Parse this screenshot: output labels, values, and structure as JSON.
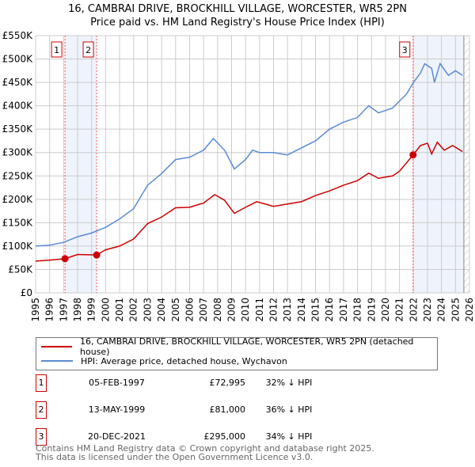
{
  "chart_data": {
    "type": "line",
    "title": "16, CAMBRAI DRIVE, BROCKHILL VILLAGE, WORCESTER, WR5 2PN",
    "subtitle": "Price paid vs. HM Land Registry's House Price Index (HPI)",
    "xlim": [
      1995,
      2026
    ],
    "ylim": [
      0,
      550000
    ],
    "x_ticks": [
      "1995",
      "1996",
      "1997",
      "1998",
      "1999",
      "2000",
      "2001",
      "2002",
      "2003",
      "2004",
      "2005",
      "2006",
      "2007",
      "2008",
      "2009",
      "2010",
      "2011",
      "2012",
      "2013",
      "2014",
      "2015",
      "2016",
      "2017",
      "2018",
      "2019",
      "2020",
      "2021",
      "2022",
      "2023",
      "2024",
      "2025",
      "2026"
    ],
    "y_ticks": [
      {
        "v": 0,
        "l": "£0"
      },
      {
        "v": 50000,
        "l": "£50K"
      },
      {
        "v": 100000,
        "l": "£100K"
      },
      {
        "v": 150000,
        "l": "£150K"
      },
      {
        "v": 200000,
        "l": "£200K"
      },
      {
        "v": 250000,
        "l": "£250K"
      },
      {
        "v": 300000,
        "l": "£300K"
      },
      {
        "v": 350000,
        "l": "£350K"
      },
      {
        "v": 400000,
        "l": "£400K"
      },
      {
        "v": 450000,
        "l": "£450K"
      },
      {
        "v": 500000,
        "l": "£500K"
      },
      {
        "v": 550000,
        "l": "£550K"
      }
    ],
    "series": [
      {
        "name": "16, CAMBRAI DRIVE, BROCKHILL VILLAGE, WORCESTER, WR5 2PN (detached house)",
        "color": "#cc0000",
        "x": [
          1995,
          1996,
          1997.1,
          1998,
          1999.36,
          2000,
          2001,
          2002,
          2003,
          2004,
          2005,
          2006,
          2007,
          2007.8,
          2008.5,
          2009.2,
          2010,
          2010.8,
          2012,
          2013,
          2014,
          2015,
          2016,
          2017,
          2018,
          2018.8,
          2019.5,
          2020.5,
          2021,
          2021.97,
          2022.5,
          2023,
          2023.3,
          2023.7,
          2024.2,
          2024.8,
          2025.5
        ],
        "y": [
          68000,
          70000,
          73000,
          82000,
          81000,
          92000,
          100000,
          115000,
          148000,
          162000,
          182000,
          183000,
          192000,
          210000,
          198000,
          170000,
          183000,
          195000,
          185000,
          190000,
          195000,
          208000,
          218000,
          230000,
          240000,
          256000,
          245000,
          250000,
          260000,
          295000,
          315000,
          320000,
          297000,
          322000,
          305000,
          315000,
          302000
        ]
      },
      {
        "name": "HPI: Average price, detached house, Wychavon",
        "color": "#5b8bd0",
        "x": [
          1995,
          1996,
          1997,
          1998,
          1999,
          2000,
          2001,
          2002,
          2003,
          2004,
          2005,
          2006,
          2007,
          2007.7,
          2008.5,
          2009.2,
          2010,
          2010.5,
          2011,
          2012,
          2013,
          2014,
          2015,
          2016,
          2017,
          2018,
          2018.8,
          2019.5,
          2020,
          2020.5,
          2021,
          2021.5,
          2022,
          2022.5,
          2022.8,
          2023.3,
          2023.5,
          2023.9,
          2024.5,
          2025,
          2025.5
        ],
        "y": [
          100000,
          102000,
          108000,
          120000,
          128000,
          140000,
          158000,
          180000,
          230000,
          255000,
          285000,
          290000,
          305000,
          330000,
          305000,
          265000,
          285000,
          305000,
          300000,
          300000,
          295000,
          310000,
          325000,
          350000,
          365000,
          375000,
          400000,
          385000,
          390000,
          395000,
          410000,
          425000,
          450000,
          470000,
          490000,
          480000,
          450000,
          490000,
          465000,
          475000,
          465000
        ]
      }
    ],
    "sales": [
      {
        "label": "1",
        "x": 1997.1,
        "y": 72995
      },
      {
        "label": "2",
        "x": 1999.36,
        "y": 81000
      },
      {
        "label": "3",
        "x": 2021.97,
        "y": 295000
      }
    ],
    "shaded": [
      [
        1997.1,
        1999.36
      ],
      [
        2021.97,
        2025.6
      ]
    ],
    "legend_placement": "bottom"
  },
  "legend": {
    "property": "16, CAMBRAI DRIVE, BROCKHILL VILLAGE, WORCESTER, WR5 2PN (detached house)",
    "hpi": "HPI: Average price, detached house, Wychavon"
  },
  "transactions": [
    {
      "num": "1",
      "date": "05-FEB-1997",
      "price": "£72,995",
      "hpi": "32% ↓ HPI"
    },
    {
      "num": "2",
      "date": "13-MAY-1999",
      "price": "£81,000",
      "hpi": "36% ↓ HPI"
    },
    {
      "num": "3",
      "date": "20-DEC-2021",
      "price": "£295,000",
      "hpi": "34% ↓ HPI"
    }
  ],
  "footer": [
    "Contains HM Land Registry data © Crown copyright and database right 2025.",
    "This data is licensed under the Open Government Licence v3.0."
  ]
}
